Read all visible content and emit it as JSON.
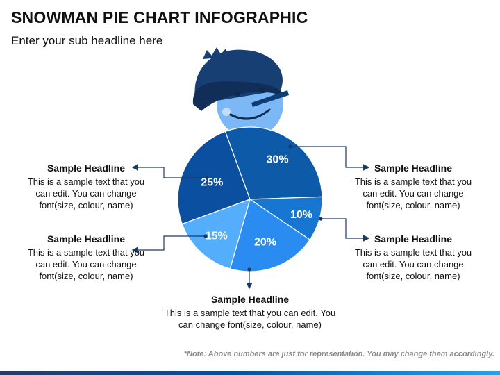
{
  "title": "SNOWMAN PIE CHART INFOGRAPHIC",
  "subtitle": "Enter your sub headline here",
  "chart_data": {
    "type": "pie",
    "title": "",
    "slices": [
      {
        "label": "25%",
        "value": 25,
        "color": "#0b4fa0"
      },
      {
        "label": "30%",
        "value": 30,
        "color": "#0d5aa8"
      },
      {
        "label": "10%",
        "value": 10,
        "color": "#1676d2"
      },
      {
        "label": "20%",
        "value": 20,
        "color": "#2a8cf0"
      },
      {
        "label": "15%",
        "value": 15,
        "color": "#55aefc"
      }
    ]
  },
  "callouts": [
    {
      "headline": "Sample Headline",
      "body": "This is a sample text that you can edit. You can change font(size, colour, name)"
    },
    {
      "headline": "Sample Headline",
      "body": "This is a sample text that you can edit. You can change font(size, colour, name)"
    },
    {
      "headline": "Sample Headline",
      "body": "This is a sample text that you can edit. You can change font(size, colour, name)"
    },
    {
      "headline": "Sample Headline",
      "body": "This is a sample text that you can edit. You can change font(size, colour, name)"
    },
    {
      "headline": "Sample Headline",
      "body": "This is a sample text that you can edit. You can change font(size, colour, name)"
    }
  ],
  "note": "*Note: Above numbers are just for representation. You may change them accordingly.",
  "colors": {
    "hat": "#183f73",
    "face": "#7bb8f5",
    "nose": "#0d3d73",
    "connector": "#1a3a66"
  }
}
